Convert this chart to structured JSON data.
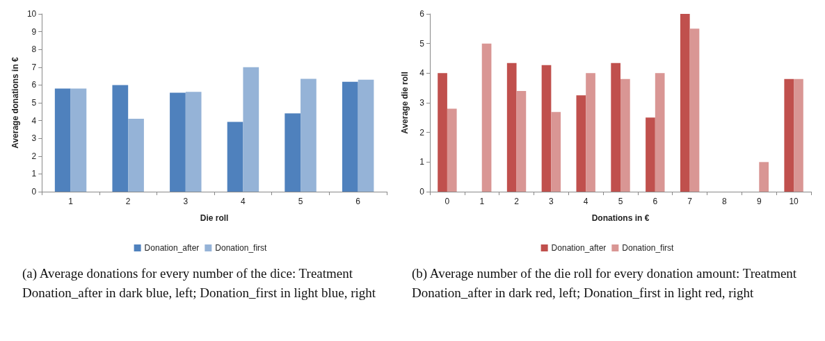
{
  "chart_data": [
    {
      "type": "bar",
      "xlabel": "Die roll",
      "ylabel": "Average donations in €",
      "categories": [
        "1",
        "2",
        "3",
        "4",
        "5",
        "6"
      ],
      "series": [
        {
          "name": "Donation_after",
          "color": "#4f81bd",
          "values": [
            5.8,
            6.0,
            5.57,
            3.93,
            4.4,
            6.18
          ]
        },
        {
          "name": "Donation_first",
          "color": "#95b3d7",
          "values": [
            5.8,
            4.1,
            5.62,
            7.0,
            6.35,
            6.3
          ]
        }
      ],
      "ylim": [
        0,
        10
      ],
      "yticks": [
        0,
        1,
        2,
        3,
        4,
        5,
        6,
        7,
        8,
        9,
        10
      ],
      "grid": false,
      "legend": "bottom",
      "annotations": [
        "(a) Average donations for every number of the dice: Treatment Donation_after in dark blue, left; Donation_first in light blue, right"
      ]
    },
    {
      "type": "bar",
      "xlabel": "Donations in €",
      "ylabel": "Average die roll",
      "categories": [
        "0",
        "1",
        "2",
        "3",
        "4",
        "5",
        "6",
        "7",
        "8",
        "9",
        "10"
      ],
      "series": [
        {
          "name": "Donation_after",
          "color": "#c0504d",
          "values": [
            4.0,
            null,
            4.34,
            4.27,
            3.25,
            4.34,
            2.5,
            6.0,
            null,
            null,
            3.8
          ]
        },
        {
          "name": "Donation_first",
          "color": "#d99694",
          "values": [
            2.8,
            5.0,
            3.4,
            2.69,
            4.0,
            3.8,
            4.0,
            5.5,
            null,
            1.0,
            3.8
          ]
        }
      ],
      "ylim": [
        0,
        6
      ],
      "yticks": [
        0,
        1,
        2,
        3,
        4,
        5,
        6
      ],
      "grid": false,
      "legend": "bottom",
      "annotations": [
        "(b) Average number of the die roll for every donation amount: Treatment Donation_after in dark red, left; Donation_first in light red, right"
      ]
    }
  ]
}
